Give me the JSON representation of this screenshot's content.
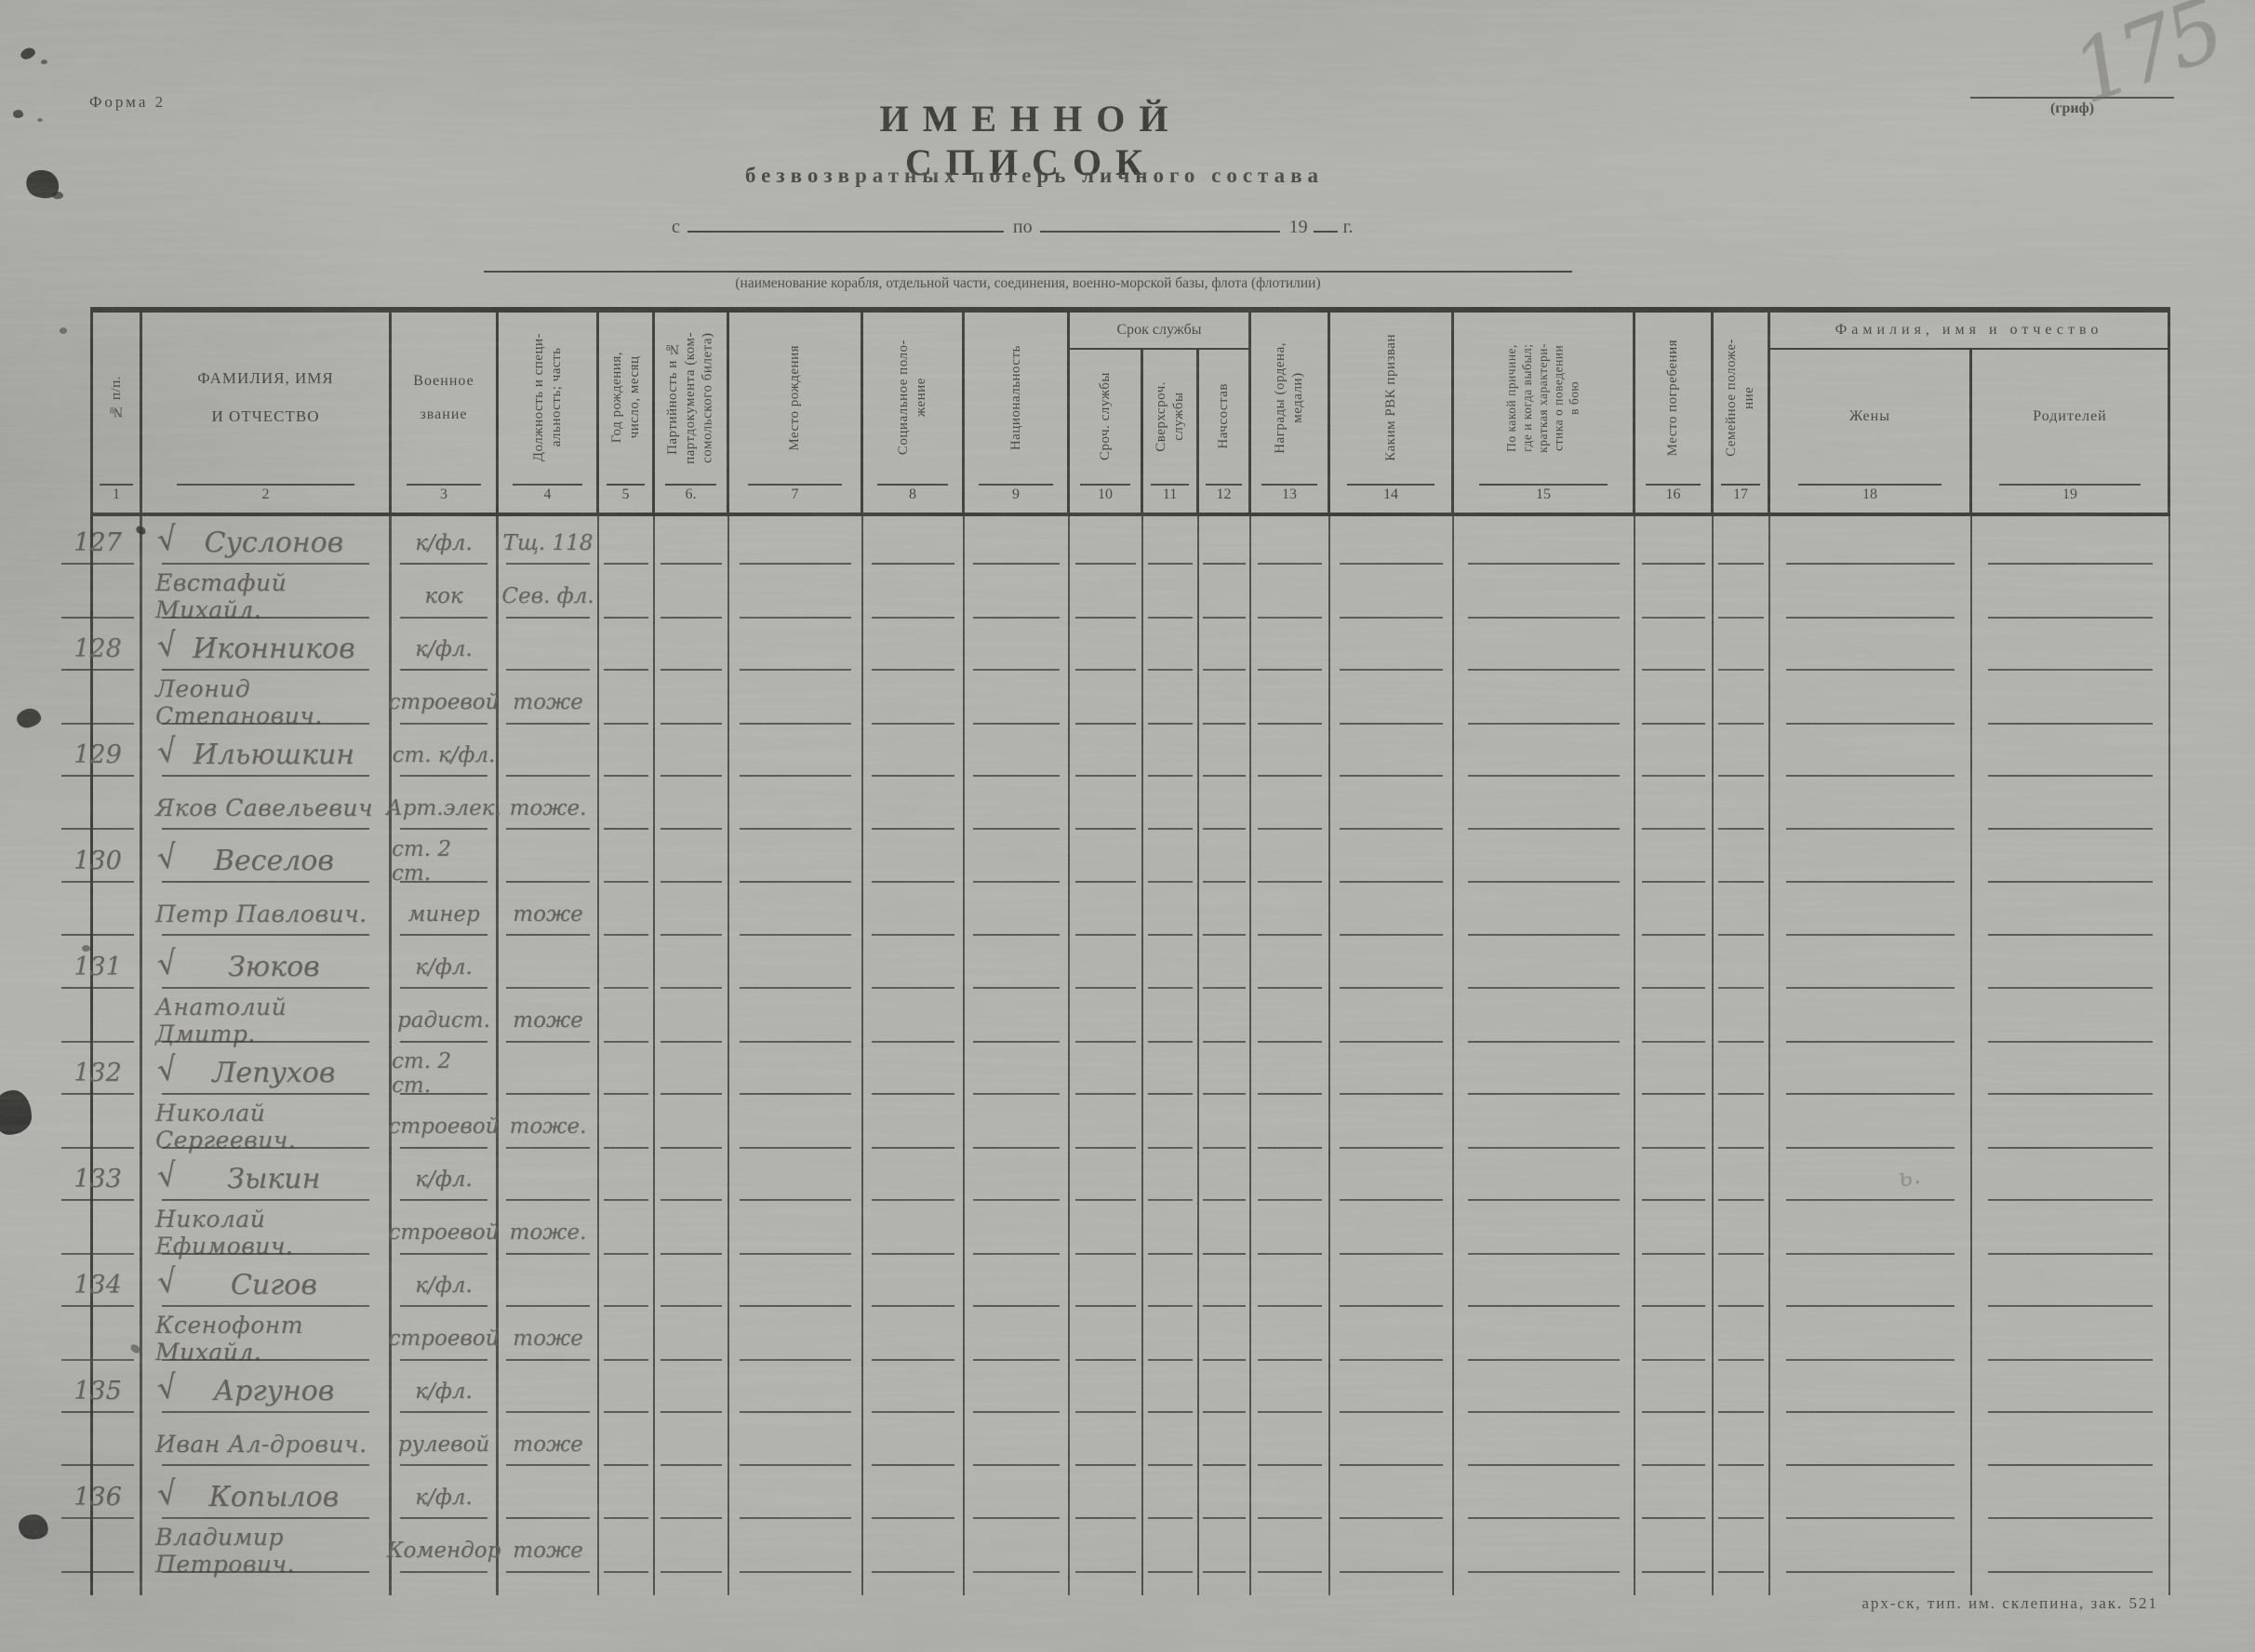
{
  "page": {
    "form_label": "Форма 2",
    "title": "ИМЕННОЙ СПИСОК",
    "subtitle": "безвозвратных потерь личного состава",
    "date_line": {
      "from": "с",
      "to": "по",
      "year": "19",
      "year_unit": "г."
    },
    "org_caption": "(наименование корабля, отдельной части, соединения, военно-морской базы, флота (флотилии)",
    "grif_label": "(гриф)",
    "page_number_handwritten": "175",
    "print_footer": "арх-ск, тип. им. склепина, зак. 521",
    "colors": {
      "paper": "#adaea9",
      "ink": "#343330",
      "pencil": "#55524c"
    }
  },
  "table": {
    "check_glyph": "√",
    "groups": [
      {
        "label": "Срок службы",
        "columns": "10–12"
      },
      {
        "label": "Фамилия, имя и отчество",
        "columns": "18–19"
      }
    ],
    "columns": [
      {
        "num": "1",
        "label": "№ п/п."
      },
      {
        "num": "2",
        "label": "ФАМИЛИЯ, ИМЯ\nИ ОТЧЕСТВО"
      },
      {
        "num": "3",
        "label": "Военное\nзвание"
      },
      {
        "num": "4",
        "label": "Должность и специ-\nальность; часть"
      },
      {
        "num": "5",
        "label": "Год рождения,\nчисло, месяц"
      },
      {
        "num": "6.",
        "label": "Партийность и №\nпартдокумента (ком-\nсомольского билета)"
      },
      {
        "num": "7",
        "label": "Место рождения"
      },
      {
        "num": "8",
        "label": "Социальное поло-\nжение"
      },
      {
        "num": "9",
        "label": "Национальность"
      },
      {
        "num": "10",
        "label": "Сроч. службы"
      },
      {
        "num": "11",
        "label": "Сверхсроч.\nслужбы"
      },
      {
        "num": "12",
        "label": "Начсостав"
      },
      {
        "num": "13",
        "label": "Награды (ордена,\nмедали)"
      },
      {
        "num": "14",
        "label": "Каким РВК призван"
      },
      {
        "num": "15",
        "label": "По какой причине,\nгде и когда выбыл;\nкраткая характери-\nстика о поведении\nв бою"
      },
      {
        "num": "16",
        "label": "Место погребения"
      },
      {
        "num": "17",
        "label": "Семейное положе-\nние"
      },
      {
        "num": "18",
        "label": "Жены"
      },
      {
        "num": "19",
        "label": "Родителей"
      }
    ],
    "records": [
      {
        "num": "127",
        "line1": {
          "name": "Суслонов",
          "rank": "к/фл.",
          "unit": "Тщ. 118"
        },
        "line2": {
          "name": "Евстафий Михайл.",
          "rank": "кок",
          "unit": "Сев. фл."
        }
      },
      {
        "num": "128",
        "line1": {
          "name": "Иконников",
          "rank": "к/фл.",
          "unit": ""
        },
        "line2": {
          "name": "Леонид Степанович.",
          "rank": "строевой",
          "unit": "тоже"
        }
      },
      {
        "num": "129",
        "line1": {
          "name": "Ильюшкин",
          "rank": "ст. к/фл.",
          "unit": ""
        },
        "line2": {
          "name": "Яков Савельевич",
          "rank": "Арт.элек.",
          "unit": "тоже."
        }
      },
      {
        "num": "130",
        "line1": {
          "name": "Веселов",
          "rank": "ст. 2 ст.",
          "unit": ""
        },
        "line2": {
          "name": "Петр Павлович.",
          "rank": "минер",
          "unit": "тоже"
        }
      },
      {
        "num": "131",
        "line1": {
          "name": "Зюков",
          "rank": "к/фл.",
          "unit": ""
        },
        "line2": {
          "name": "Анатолий Дмитр.",
          "rank": "радист.",
          "unit": "тоже"
        }
      },
      {
        "num": "132",
        "line1": {
          "name": "Лепухов",
          "rank": "ст. 2 ст.",
          "unit": ""
        },
        "line2": {
          "name": "Николай Сергеевич.",
          "rank": "строевой",
          "unit": "тоже."
        }
      },
      {
        "num": "133",
        "line1": {
          "name": "Зыкин",
          "rank": "к/фл.",
          "unit": ""
        },
        "line2": {
          "name": "Николай Ефимович.",
          "rank": "строевой",
          "unit": "тоже."
        }
      },
      {
        "num": "134",
        "line1": {
          "name": "Сигов",
          "rank": "к/фл.",
          "unit": ""
        },
        "line2": {
          "name": "Ксенофонт Михайл.",
          "rank": "строевой",
          "unit": "тоже"
        }
      },
      {
        "num": "135",
        "line1": {
          "name": "Аргунов",
          "rank": "к/фл.",
          "unit": ""
        },
        "line2": {
          "name": "Иван Ал-дрович.",
          "rank": "рулевой",
          "unit": "тоже"
        }
      },
      {
        "num": "136",
        "line1": {
          "name": "Копылов",
          "rank": "к/фл.",
          "unit": ""
        },
        "line2": {
          "name": "Владимир Петрович.",
          "rank": "Комендор",
          "unit": "тоже"
        }
      }
    ]
  }
}
